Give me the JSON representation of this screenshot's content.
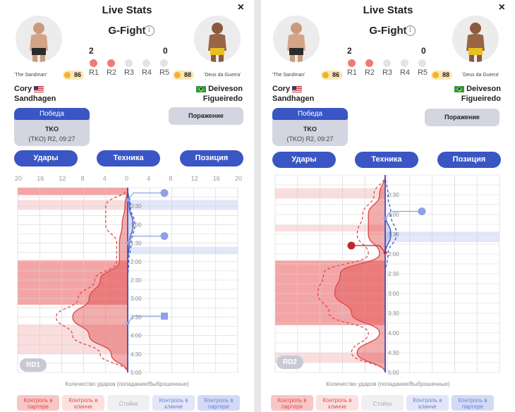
{
  "panels": [
    {
      "id": "left",
      "header": {
        "title": "Live Stats",
        "event": "G-Fight",
        "close_glyph": "×",
        "info_glyph": "i"
      },
      "score": {
        "red": "2",
        "blue": "0"
      },
      "rounds": [
        "R1",
        "R2",
        "R3",
        "R4",
        "R5"
      ],
      "rounds_won_red": [
        true,
        true,
        false,
        false,
        false
      ],
      "fighter_red": {
        "nickname": "'The Sandman'",
        "rating": "86",
        "first_name": "Cory",
        "last_name": "Sandhagen"
      },
      "fighter_blue": {
        "nickname": "'Deus da Guerra'",
        "rating": "88",
        "first_name": "Deiveson",
        "last_name": "Figueiredo"
      },
      "result": {
        "win_label": "Победа",
        "method": "TKO",
        "details": "(TKO) R2, 09:27",
        "lose_label": "Поражение"
      },
      "tabs": [
        "Удары",
        "Техника",
        "Позиция"
      ],
      "axis_ticks": [
        "20",
        "16",
        "12",
        "8",
        "4",
        "0",
        "4",
        "8",
        "12",
        "16",
        "20"
      ],
      "time_labels": [
        "0:30",
        "1:00",
        "1:30",
        "2:00",
        "2:30",
        "3:00",
        "3:30",
        "4:00",
        "4:30",
        "5:00"
      ],
      "round_badge": "RD1",
      "caption": "Количество ударов (попадание/Выброшенные)",
      "legend": [
        "Контроль в партере",
        "Контроль в клинче",
        "Стойка",
        "Контроль в клинче",
        "Контроль в партере"
      ],
      "colors": {
        "red": "#e24a4a",
        "blue": "#3a55c4",
        "light_red": "#f7c6c6",
        "light_blue": "#c8d0f3"
      }
    },
    {
      "id": "right",
      "header": {
        "title": "Live Stats",
        "event": "G-Fight",
        "close_glyph": "×",
        "info_glyph": "i"
      },
      "score": {
        "red": "2",
        "blue": "0"
      },
      "rounds": [
        "R1",
        "R2",
        "R3",
        "R4",
        "R5"
      ],
      "rounds_won_red": [
        true,
        true,
        false,
        false,
        false
      ],
      "fighter_red": {
        "nickname": "'The Sandman'",
        "rating": "86",
        "first_name": "Cory",
        "last_name": "Sandhagen"
      },
      "fighter_blue": {
        "nickname": "'Deus da Guerra'",
        "rating": "88",
        "first_name": "Deiveson",
        "last_name": "Figueiredo"
      },
      "result": {
        "win_label": "Победа",
        "method": "TKO",
        "details": "(TKO) R2, 09:27",
        "lose_label": "Поражение"
      },
      "tabs": [
        "Удары",
        "Техника",
        "Позиция"
      ],
      "time_labels": [
        "0:30",
        "1:00",
        "1:30",
        "2:00",
        "2:30",
        "3:00",
        "3:30",
        "4:00",
        "4:30",
        "5:00"
      ],
      "round_badge": "RD2",
      "caption": "Количество ударов (попадание/Выброшенные)",
      "legend": [
        "Контроль в партере",
        "Контроль в клинче",
        "Стойка",
        "Контроль в клинче",
        "Контроль в партере"
      ]
    }
  ],
  "chart_data": [
    {
      "type": "area",
      "title": "",
      "xlabel": "Количество ударов (попадание/Выброшенные)",
      "ylabel": "",
      "round": "RD1",
      "xlim": [
        -20,
        20
      ],
      "ylim": [
        0,
        300
      ],
      "x_ticks": [
        20,
        16,
        12,
        8,
        4,
        0,
        4,
        8,
        12,
        16,
        20
      ],
      "y_tick_labels": [
        "0:30",
        "1:00",
        "1:30",
        "2:00",
        "2:30",
        "3:00",
        "3:30",
        "4:00",
        "4:30",
        "5:00"
      ],
      "time_seconds": [
        0,
        30,
        60,
        90,
        120,
        150,
        180,
        210,
        240,
        270,
        300
      ],
      "series": [
        {
          "name": "Sandhagen landed",
          "side": "left",
          "values": [
            0,
            0.5,
            1,
            1.5,
            1.5,
            5,
            7,
            10,
            7,
            3,
            0
          ]
        },
        {
          "name": "Sandhagen thrown",
          "side": "left",
          "values": [
            0,
            4,
            4,
            2,
            2,
            6,
            9,
            13,
            10,
            5,
            0
          ]
        },
        {
          "name": "Figueiredo landed",
          "side": "right",
          "values": [
            0,
            0.3,
            1,
            0.3,
            0,
            0,
            0,
            0,
            0,
            0,
            0
          ]
        },
        {
          "name": "Figueiredo thrown",
          "side": "right",
          "values": [
            0,
            0.5,
            1.3,
            0.6,
            0.2,
            0,
            0,
            0,
            0,
            0,
            0
          ]
        }
      ],
      "position_bands": [
        {
          "from": 0,
          "to": 12,
          "side": "left",
          "kind": "Контроль в партере"
        },
        {
          "from": 20,
          "to": 36,
          "side": "left",
          "kind": "Контроль в клинче"
        },
        {
          "from": 20,
          "to": 36,
          "side": "right",
          "kind": "Контроль в клинче"
        },
        {
          "from": 96,
          "to": 108,
          "side": "right",
          "kind": "Контроль в клинче"
        },
        {
          "from": 118,
          "to": 190,
          "side": "left",
          "kind": "Контроль в партере"
        },
        {
          "from": 222,
          "to": 270,
          "side": "left",
          "kind": "Контроль в клинче"
        }
      ],
      "events": [
        {
          "time": 20,
          "side": "right",
          "marker": "circle"
        },
        {
          "time": 90,
          "side": "right",
          "marker": "circle"
        },
        {
          "time": 220,
          "side": "right",
          "marker": "square"
        }
      ]
    },
    {
      "type": "area",
      "title": "",
      "xlabel": "Количество ударов (попадание/Выброшенные)",
      "ylabel": "",
      "round": "RD2",
      "xlim": [
        -20,
        20
      ],
      "ylim": [
        0,
        300
      ],
      "y_tick_labels": [
        "0:30",
        "1:00",
        "1:30",
        "2:00",
        "2:30",
        "3:00",
        "3:30",
        "4:00",
        "4:30",
        "5:00"
      ],
      "time_seconds": [
        0,
        30,
        60,
        90,
        120,
        150,
        180,
        210,
        240,
        270,
        300
      ],
      "series": [
        {
          "name": "Sandhagen landed",
          "side": "left",
          "values": [
            0,
            1,
            3,
            3,
            1,
            8,
            9,
            6,
            1,
            5,
            0
          ]
        },
        {
          "name": "Sandhagen thrown",
          "side": "left",
          "values": [
            0,
            2,
            4,
            5,
            3,
            11,
            12,
            10,
            3,
            6,
            0
          ]
        },
        {
          "name": "Figueiredo landed",
          "side": "right",
          "values": [
            0,
            0,
            0,
            1,
            0,
            0,
            0,
            0,
            0,
            0,
            0
          ]
        },
        {
          "name": "Figueiredo thrown",
          "side": "right",
          "values": [
            0,
            0.5,
            1,
            2,
            0.5,
            0,
            0,
            0,
            0,
            0,
            0
          ]
        }
      ],
      "position_bands": [
        {
          "from": 20,
          "to": 36,
          "side": "left",
          "kind": "Контроль в клинче"
        },
        {
          "from": 76,
          "to": 86,
          "side": "left",
          "kind": "Контроль в клинче"
        },
        {
          "from": 86,
          "to": 102,
          "side": "right",
          "kind": "Контроль в клинче"
        },
        {
          "from": 130,
          "to": 228,
          "side": "left",
          "kind": "Контроль в партере"
        },
        {
          "from": 270,
          "to": 285,
          "side": "left",
          "kind": "Контроль в клинче"
        }
      ],
      "events": [
        {
          "time": 66,
          "side": "right",
          "marker": "circle"
        },
        {
          "time": 118,
          "side": "left",
          "marker": "circle"
        }
      ]
    }
  ]
}
